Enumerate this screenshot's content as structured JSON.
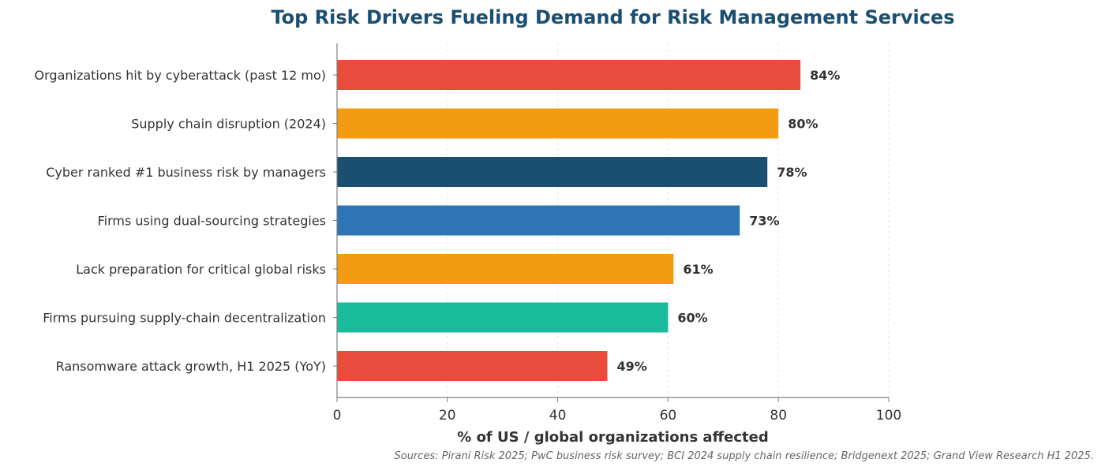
{
  "chart_data": {
    "type": "bar",
    "orientation": "horizontal",
    "title": "Top Risk Drivers Fueling Demand for Risk Management Services",
    "xlabel": "% of US / global organizations affected",
    "ylabel": "",
    "xlim": [
      0,
      100
    ],
    "x_ticks": [
      0,
      20,
      40,
      60,
      80,
      100
    ],
    "grid": "vertical dashed",
    "categories": [
      "Organizations hit by cyberattack (past 12 mo)",
      "Supply chain disruption (2024)",
      "Cyber ranked #1 business risk by managers",
      "Firms using dual-sourcing strategies",
      "Lack preparation for critical global risks",
      "Firms pursuing supply-chain decentralization",
      "Ransomware attack growth, H1 2025 (YoY)"
    ],
    "values": [
      84,
      80,
      78,
      73,
      61,
      60,
      49
    ],
    "value_labels": [
      "84%",
      "80%",
      "78%",
      "73%",
      "61%",
      "60%",
      "49%"
    ],
    "colors": [
      "#e74c3c",
      "#f39c12",
      "#1b4f72",
      "#2e75b6",
      "#f39c12",
      "#1abc9c",
      "#e74c3c"
    ]
  },
  "footer": {
    "source": "Sources: Pirani Risk 2025; PwC business risk survey; BCI 2024 supply chain resilience; Bridgenext 2025; Grand View Research H1 2025."
  }
}
